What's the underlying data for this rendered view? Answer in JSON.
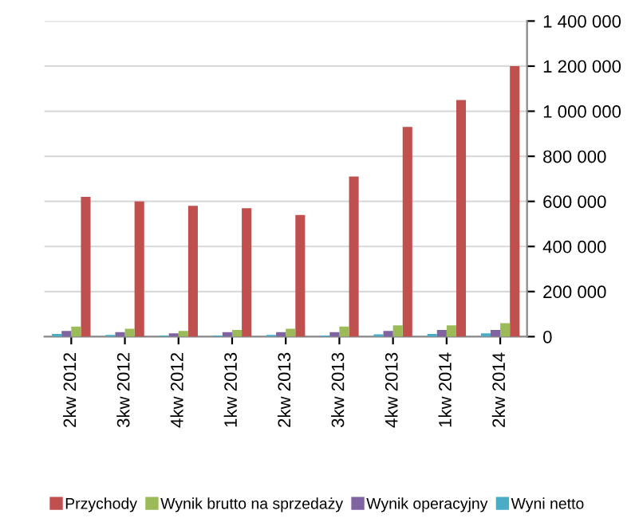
{
  "chart_data": {
    "type": "bar",
    "categories": [
      "2kw 2012",
      "3kw 2012",
      "4kw 2012",
      "1kw 2013",
      "2kw 2013",
      "3kw 2013",
      "4kw 2013",
      "1kw 2014",
      "2kw 2014"
    ],
    "series": [
      {
        "name": "Przychody",
        "color": "#c0504d",
        "values": [
          620000,
          600000,
          580000,
          570000,
          540000,
          710000,
          930000,
          1050000,
          1200000
        ]
      },
      {
        "name": "Wynik brutto na sprzedaży",
        "color": "#9bbb59",
        "values": [
          45000,
          35000,
          25000,
          30000,
          35000,
          45000,
          50000,
          50000,
          60000
        ]
      },
      {
        "name": "Wynik operacyjny",
        "color": "#8064a2",
        "values": [
          25000,
          20000,
          15000,
          20000,
          20000,
          20000,
          25000,
          30000,
          30000
        ]
      },
      {
        "name": "Wyni netto",
        "color": "#4bacc6",
        "values": [
          12000,
          8000,
          5000,
          5000,
          8000,
          5000,
          10000,
          12000,
          15000
        ]
      }
    ],
    "ylim": [
      0,
      1400000
    ],
    "yticks": [
      0,
      {
        "value": 200000,
        "label": "200 000"
      },
      {
        "value": 400000,
        "label": "400 000"
      },
      {
        "value": 600000,
        "label": "600 000"
      },
      {
        "value": 800000,
        "label": "800 000"
      },
      {
        "value": 1000000,
        "label": "1 000 000"
      },
      {
        "value": 1200000,
        "label": "1 200 000"
      },
      {
        "value": 1400000,
        "label": "1 400 000"
      }
    ],
    "grid": "y",
    "legend": "bottom"
  }
}
